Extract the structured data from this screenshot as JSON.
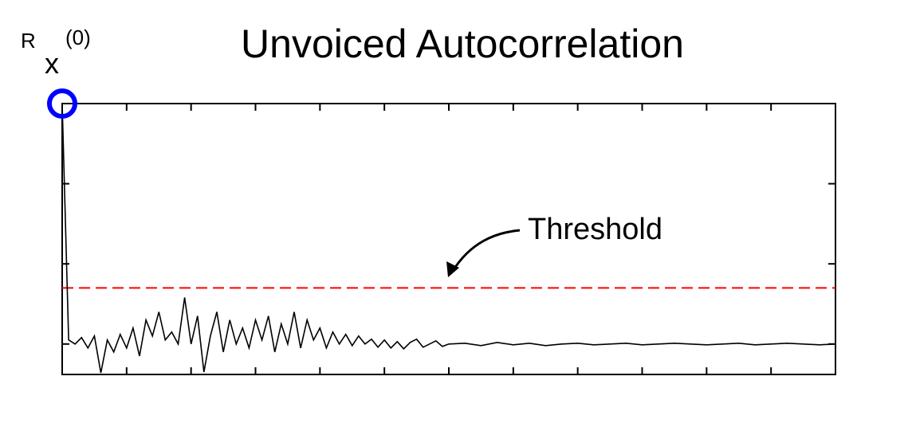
{
  "chart_data": {
    "type": "line",
    "title": "Unvoiced Autocorrelation",
    "annotation": {
      "base": "R",
      "subscript": "x",
      "suffix": "(0)"
    },
    "threshold": {
      "value": 0.7,
      "label": "Threshold",
      "color": "#ff0000"
    },
    "marker_color": "#0000ff",
    "xlim": [
      0,
      12
    ],
    "xticks": [
      0,
      1,
      2,
      3,
      4,
      5,
      6,
      7,
      8,
      9,
      10,
      11,
      12
    ],
    "ylim": [
      -0.38,
      3
    ],
    "yticks": [
      0,
      1,
      2,
      3
    ],
    "series": [
      {
        "color": "#000000",
        "x": [
          0,
          0.1,
          0.2,
          0.3,
          0.4,
          0.5,
          0.6,
          0.7,
          0.8,
          0.9,
          1.0,
          1.1,
          1.2,
          1.3,
          1.4,
          1.5,
          1.6,
          1.7,
          1.8,
          1.9,
          2.0,
          2.1,
          2.2,
          2.3,
          2.4,
          2.5,
          2.6,
          2.7,
          2.8,
          2.9,
          3.0,
          3.1,
          3.2,
          3.3,
          3.4,
          3.5,
          3.6,
          3.7,
          3.8,
          3.9,
          4.0,
          4.1,
          4.2,
          4.3,
          4.4,
          4.5,
          4.6,
          4.7,
          4.8,
          4.9,
          5.0,
          5.1,
          5.2,
          5.3,
          5.4,
          5.5,
          5.6,
          5.7,
          5.8,
          5.9,
          6.0,
          6.25,
          6.5,
          6.75,
          7,
          7.25,
          7.5,
          7.75,
          8,
          8.25,
          8.5,
          8.75,
          9,
          9.25,
          9.5,
          9.75,
          10,
          10.25,
          10.5,
          10.75,
          11,
          11.25,
          11.5,
          11.75,
          12
        ],
        "values": [
          3,
          0.05,
          0.0,
          0.08,
          -0.05,
          0.1,
          -0.36,
          0.05,
          -0.1,
          0.12,
          -0.05,
          0.2,
          -0.15,
          0.3,
          0.1,
          0.4,
          0.05,
          0.15,
          0.0,
          0.58,
          0.0,
          0.35,
          -0.35,
          0.1,
          0.4,
          -0.1,
          0.3,
          0.0,
          0.2,
          -0.05,
          0.3,
          0.05,
          0.35,
          -0.1,
          0.25,
          0.0,
          0.4,
          -0.05,
          0.3,
          0.05,
          0.2,
          -0.05,
          0.15,
          0.0,
          0.12,
          -0.02,
          0.1,
          0.0,
          0.06,
          -0.04,
          0.05,
          -0.05,
          0.03,
          -0.06,
          0.02,
          0.06,
          -0.04,
          0.0,
          0.04,
          -0.03,
          0.0,
          0.01,
          -0.02,
          0.02,
          -0.01,
          0.01,
          -0.02,
          0.0,
          0.01,
          -0.01,
          0.0,
          0.01,
          -0.01,
          0.0,
          0.01,
          0.0,
          -0.01,
          0.0,
          0.01,
          -0.01,
          0.0,
          0.01,
          0.0,
          -0.01,
          0.0
        ]
      }
    ]
  }
}
